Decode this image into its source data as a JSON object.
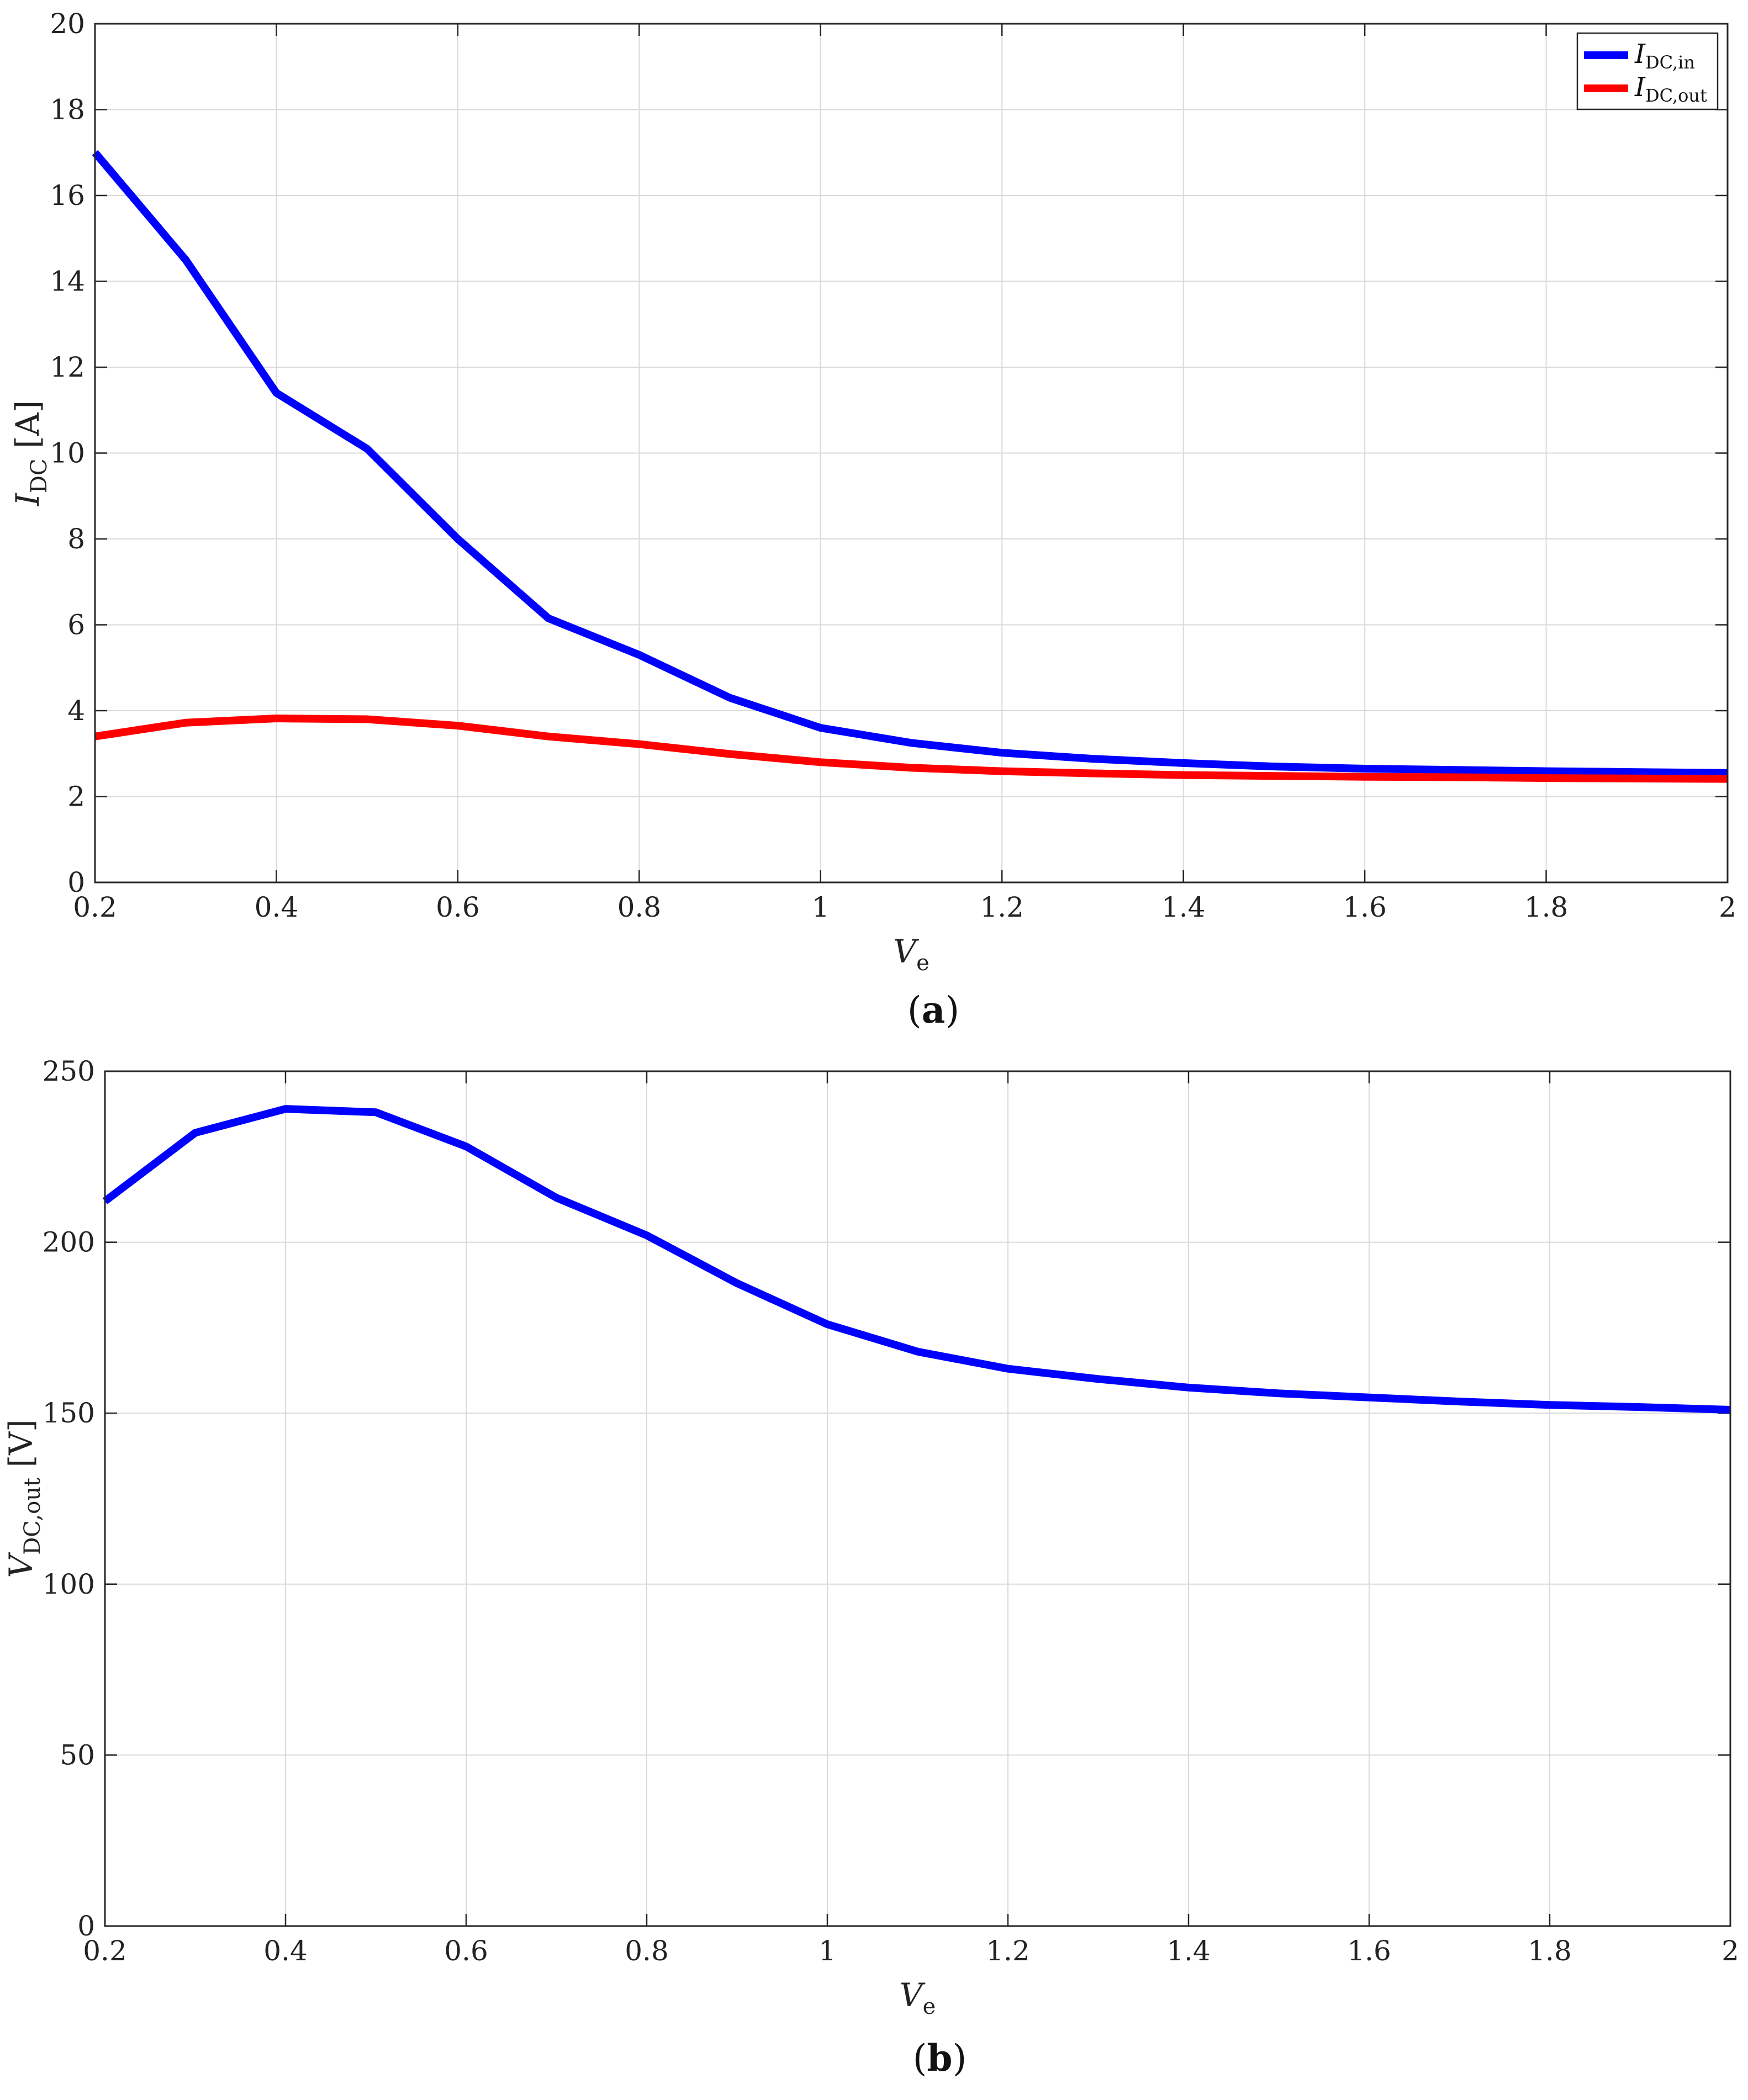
{
  "colors": {
    "blue": "#0000ff",
    "red": "#ff0000",
    "grid": "#d9d9d9",
    "axis": "#262626"
  },
  "chart_data": [
    {
      "type": "line",
      "caption": {
        "open": "(",
        "letter": "a",
        "close": ")"
      },
      "xlabel": {
        "main": "V",
        "sub": "e"
      },
      "ylabel": {
        "main": "I",
        "sub": "DC",
        "unit": "[A]"
      },
      "xlim": [
        0.2,
        2
      ],
      "ylim": [
        0,
        20
      ],
      "xticks": [
        "0.2",
        "0.4",
        "0.6",
        "0.8",
        "1",
        "1.2",
        "1.4",
        "1.6",
        "1.8",
        "2"
      ],
      "yticks": [
        "0",
        "2",
        "4",
        "6",
        "8",
        "10",
        "12",
        "14",
        "16",
        "18",
        "20"
      ],
      "grid": true,
      "legend_position": "top-right",
      "x": [
        0.2,
        0.3,
        0.4,
        0.5,
        0.6,
        0.7,
        0.8,
        0.9,
        1.0,
        1.1,
        1.2,
        1.3,
        1.4,
        1.5,
        1.6,
        1.7,
        1.8,
        1.9,
        2.0
      ],
      "series": [
        {
          "name": {
            "main": "I",
            "sub": "DC,in"
          },
          "color": "blue",
          "values": [
            17.0,
            14.5,
            11.4,
            10.1,
            8.0,
            6.15,
            5.3,
            4.3,
            3.6,
            3.25,
            3.02,
            2.88,
            2.78,
            2.7,
            2.65,
            2.62,
            2.59,
            2.57,
            2.55
          ]
        },
        {
          "name": {
            "main": "I",
            "sub": "DC,out"
          },
          "color": "red",
          "values": [
            3.4,
            3.72,
            3.82,
            3.8,
            3.65,
            3.4,
            3.22,
            2.99,
            2.8,
            2.67,
            2.59,
            2.54,
            2.5,
            2.48,
            2.46,
            2.45,
            2.43,
            2.42,
            2.41
          ]
        }
      ]
    },
    {
      "type": "line",
      "caption": {
        "open": "(",
        "letter": "b",
        "close": ")"
      },
      "xlabel": {
        "main": "V",
        "sub": "e"
      },
      "ylabel": {
        "main": "V",
        "sub": "DC,out",
        "unit": "[V]"
      },
      "xlim": [
        0.2,
        2
      ],
      "ylim": [
        0,
        250
      ],
      "xticks": [
        "0.2",
        "0.4",
        "0.6",
        "0.8",
        "1",
        "1.2",
        "1.4",
        "1.6",
        "1.8",
        "2"
      ],
      "yticks": [
        "0",
        "50",
        "100",
        "150",
        "200",
        "250"
      ],
      "grid": true,
      "x": [
        0.2,
        0.3,
        0.4,
        0.5,
        0.6,
        0.7,
        0.8,
        0.9,
        1.0,
        1.1,
        1.2,
        1.3,
        1.4,
        1.5,
        1.6,
        1.7,
        1.8,
        1.9,
        2.0
      ],
      "series": [
        {
          "color": "blue",
          "values": [
            212,
            232,
            239,
            238,
            228,
            213,
            202,
            188,
            176,
            168,
            163,
            160,
            157.5,
            155.8,
            154.6,
            153.4,
            152.4,
            151.8,
            151.0
          ]
        }
      ]
    }
  ]
}
